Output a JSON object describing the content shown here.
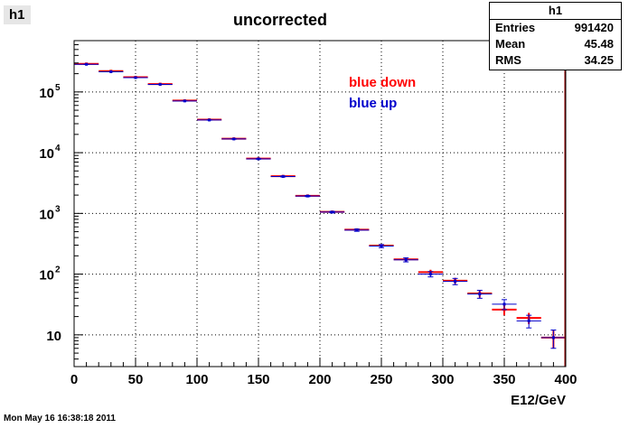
{
  "frame_title": "h1",
  "footer": "Mon May 16 16:38:18 2011",
  "stats": {
    "title": "h1",
    "rows": [
      {
        "label": "Entries",
        "value": "991420"
      },
      {
        "label": "Mean",
        "value": "45.48"
      },
      {
        "label": "RMS",
        "value": "34.25"
      }
    ]
  },
  "colors": {
    "red": "#ff0000",
    "blue": "#0000cc",
    "frame": "#000000",
    "grid": "#000000"
  },
  "chart_data": {
    "type": "scatter",
    "title": "uncorrected",
    "xlabel": "E12/GeV",
    "ylabel": "",
    "xlim": [
      0,
      400
    ],
    "ylim": [
      3,
      700000
    ],
    "log_y": true,
    "grid": true,
    "x_ticks": [
      "0",
      "50",
      "100",
      "150",
      "200",
      "250",
      "300",
      "350",
      "400"
    ],
    "y_ticks": [
      {
        "value": 10,
        "base": "10",
        "exp": ""
      },
      {
        "value": 100,
        "base": "10",
        "exp": "2"
      },
      {
        "value": 1000,
        "base": "10",
        "exp": "3"
      },
      {
        "value": 10000,
        "base": "10",
        "exp": "4"
      },
      {
        "value": 100000,
        "base": "10",
        "exp": "5"
      }
    ],
    "bin_width": 20,
    "x": [
      10,
      30,
      50,
      70,
      90,
      110,
      130,
      150,
      170,
      190,
      210,
      230,
      250,
      270,
      290,
      310,
      330,
      350,
      370,
      390
    ],
    "series": [
      {
        "name": "blue down",
        "color": "#ff0000",
        "values": [
          290000,
          220000,
          175000,
          135000,
          72000,
          35000,
          17000,
          8000,
          4100,
          1950,
          1060,
          540,
          295,
          175,
          108,
          78,
          48,
          26,
          19,
          9
        ],
        "errors": [
          540,
          470,
          420,
          370,
          270,
          190,
          130,
          90,
          64,
          44,
          33,
          23,
          17,
          13,
          10,
          9,
          7,
          5,
          4,
          3
        ]
      },
      {
        "name": "blue up",
        "color": "#0000cc",
        "values": [
          285000,
          215000,
          172000,
          133000,
          71000,
          34500,
          16800,
          7900,
          4050,
          1930,
          1050,
          530,
          290,
          172,
          100,
          76,
          47,
          32,
          17,
          9
        ],
        "errors": [
          530,
          460,
          410,
          360,
          270,
          190,
          130,
          90,
          64,
          44,
          32,
          23,
          17,
          13,
          10,
          9,
          7,
          6,
          4,
          3
        ]
      }
    ]
  }
}
